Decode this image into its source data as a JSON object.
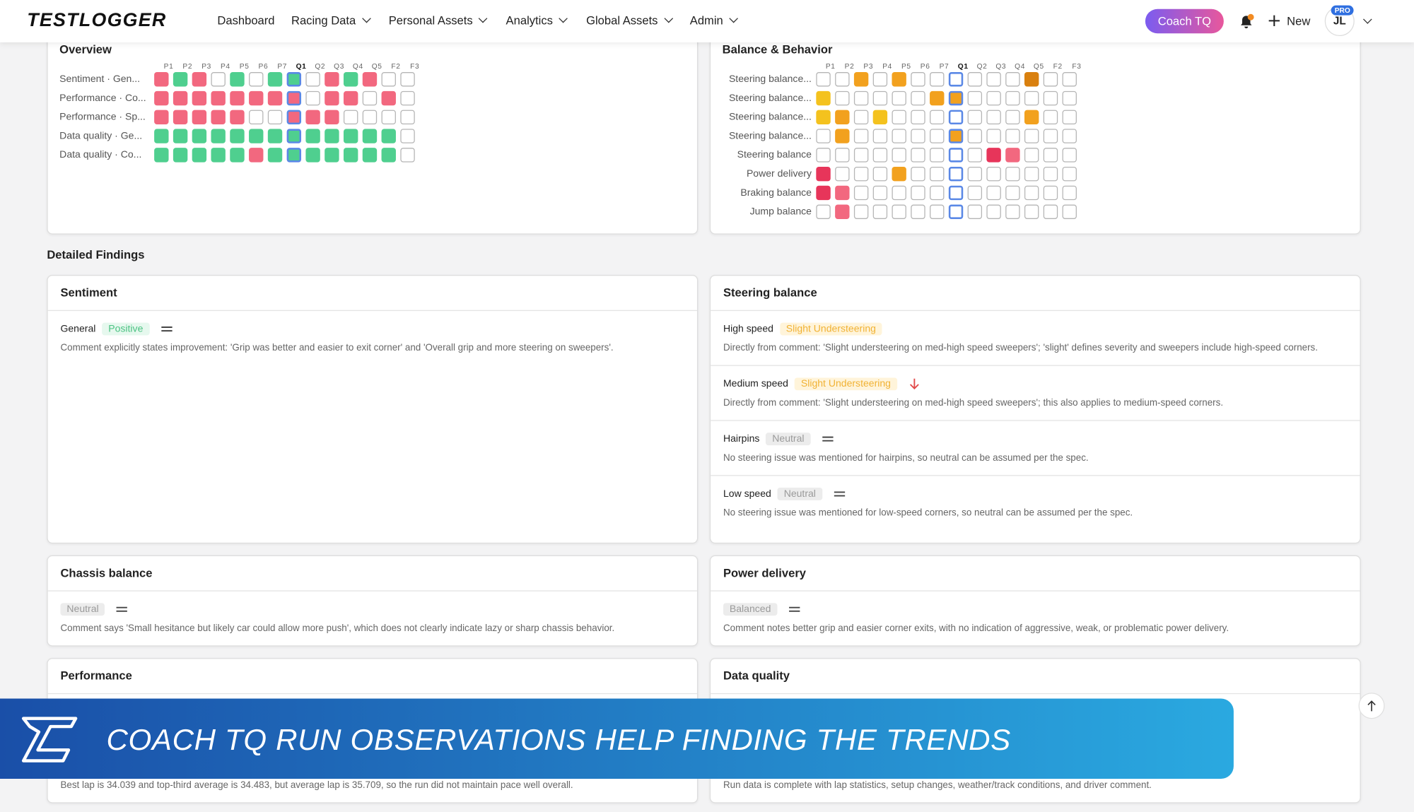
{
  "nav": {
    "logo": "TESTLOGGER",
    "items": [
      {
        "label": "Dashboard",
        "menu": false
      },
      {
        "label": "Racing Data",
        "menu": true
      },
      {
        "label": "Personal Assets",
        "menu": true
      },
      {
        "label": "Analytics",
        "menu": true
      },
      {
        "label": "Global Assets",
        "menu": true
      },
      {
        "label": "Admin",
        "menu": true
      }
    ],
    "coach": "Coach TQ",
    "new": "New",
    "avatar": "JL",
    "badge": "PRO"
  },
  "heatmaps": [
    {
      "title": "Overview",
      "columns": [
        "P1",
        "P2",
        "P3",
        "P4",
        "P5",
        "P6",
        "P7",
        "Q1",
        "Q2",
        "Q3",
        "Q4",
        "Q5",
        "F2",
        "F3"
      ],
      "current_column": "Q1",
      "label_align": "left",
      "rows": [
        {
          "label": "Sentiment · Gen...",
          "cells": [
            "pink",
            "green",
            "pink",
            "empty",
            "green",
            "empty",
            "green",
            "green",
            "empty",
            "pink",
            "green",
            "pink",
            "empty",
            "empty"
          ]
        },
        {
          "label": "Performance · Co...",
          "cells": [
            "pink",
            "pink",
            "pink",
            "pink",
            "pink",
            "pink",
            "pink",
            "pink",
            "empty",
            "pink",
            "pink",
            "empty",
            "pink",
            "empty"
          ]
        },
        {
          "label": "Performance · Sp...",
          "cells": [
            "pink",
            "pink",
            "pink",
            "pink",
            "pink",
            "empty",
            "empty",
            "pink",
            "pink",
            "pink",
            "empty",
            "empty",
            "empty",
            "empty"
          ]
        },
        {
          "label": "Data quality · Ge...",
          "cells": [
            "green",
            "green",
            "green",
            "green",
            "green",
            "green",
            "green",
            "green",
            "green",
            "green",
            "green",
            "green",
            "green",
            "empty"
          ]
        },
        {
          "label": "Data quality · Co...",
          "cells": [
            "green",
            "green",
            "green",
            "green",
            "green",
            "pink",
            "green",
            "green",
            "green",
            "green",
            "green",
            "green",
            "green",
            "empty"
          ]
        }
      ]
    },
    {
      "title": "Balance & Behavior",
      "columns": [
        "P1",
        "P2",
        "P3",
        "P4",
        "P5",
        "P6",
        "P7",
        "Q1",
        "Q2",
        "Q3",
        "Q4",
        "Q5",
        "F2",
        "F3"
      ],
      "current_column": "Q1",
      "label_align": "right",
      "rows": [
        {
          "label": "Steering balance...",
          "cells": [
            "empty",
            "empty",
            "orange",
            "empty",
            "orange",
            "empty",
            "empty",
            "empty",
            "empty",
            "empty",
            "empty",
            "darkorange",
            "empty",
            "empty"
          ]
        },
        {
          "label": "Steering balance...",
          "cells": [
            "yellow",
            "empty",
            "empty",
            "empty",
            "empty",
            "empty",
            "orange",
            "orange",
            "empty",
            "empty",
            "empty",
            "empty",
            "empty",
            "empty"
          ]
        },
        {
          "label": "Steering balance...",
          "cells": [
            "yellow",
            "orange",
            "empty",
            "yellow",
            "empty",
            "empty",
            "empty",
            "empty",
            "empty",
            "empty",
            "empty",
            "orange",
            "empty",
            "empty"
          ]
        },
        {
          "label": "Steering balance...",
          "cells": [
            "empty",
            "orange",
            "empty",
            "empty",
            "empty",
            "empty",
            "empty",
            "orange",
            "empty",
            "empty",
            "empty",
            "empty",
            "empty",
            "empty"
          ]
        },
        {
          "label": "Steering balance",
          "cells": [
            "empty",
            "empty",
            "empty",
            "empty",
            "empty",
            "empty",
            "empty",
            "empty",
            "empty",
            "red",
            "pink",
            "empty",
            "empty",
            "empty"
          ]
        },
        {
          "label": "Power delivery",
          "cells": [
            "red",
            "empty",
            "empty",
            "empty",
            "orange",
            "empty",
            "empty",
            "empty",
            "empty",
            "empty",
            "empty",
            "empty",
            "empty",
            "empty"
          ]
        },
        {
          "label": "Braking balance",
          "cells": [
            "red",
            "pink",
            "empty",
            "empty",
            "empty",
            "empty",
            "empty",
            "empty",
            "empty",
            "empty",
            "empty",
            "empty",
            "empty",
            "empty"
          ]
        },
        {
          "label": "Jump balance",
          "cells": [
            "empty",
            "pink",
            "empty",
            "empty",
            "empty",
            "empty",
            "empty",
            "empty",
            "empty",
            "empty",
            "empty",
            "empty",
            "empty",
            "empty"
          ]
        }
      ]
    }
  ],
  "findings": {
    "title": "Detailed Findings",
    "cards": [
      {
        "title": "Sentiment",
        "items": [
          {
            "label": "General",
            "tag": "Positive",
            "tag_style": "positive",
            "trend": "same",
            "comment": "Comment explicitly states improvement: 'Grip was better and easier to exit corner' and 'Overall grip and more steering on sweepers'."
          }
        ]
      },
      {
        "title": "Steering balance",
        "items": [
          {
            "label": "High speed",
            "tag": "Slight Understeering",
            "tag_style": "warning",
            "trend": "none",
            "comment": "Directly from comment: 'Slight understeering on med-high speed sweepers'; 'slight' defines severity and sweepers include high-speed corners."
          },
          {
            "label": "Medium speed",
            "tag": "Slight Understeering",
            "tag_style": "warning",
            "trend": "down",
            "comment": "Directly from comment: 'Slight understeering on med-high speed sweepers'; this also applies to medium-speed corners."
          },
          {
            "label": "Hairpins",
            "tag": "Neutral",
            "tag_style": "neutral",
            "trend": "same",
            "comment": "No steering issue was mentioned for hairpins, so neutral can be assumed per the spec."
          },
          {
            "label": "Low speed",
            "tag": "Neutral",
            "tag_style": "neutral",
            "trend": "same",
            "comment": "No steering issue was mentioned for low-speed corners, so neutral can be assumed per the spec."
          }
        ]
      },
      {
        "title": "Chassis balance",
        "items": [
          {
            "tag": "Neutral",
            "tag_style": "neutral",
            "trend": "same",
            "comment": "Comment says 'Small hesitance but likely car could allow more push', which does not clearly indicate lazy or sharp chassis behavior."
          }
        ]
      },
      {
        "title": "Power delivery",
        "items": [
          {
            "tag": "Balanced",
            "tag_style": "neutral",
            "trend": "same",
            "comment": "Comment notes better grip and easier corner exits, with no indication of aggressive, weak, or problematic power delivery."
          }
        ]
      },
      {
        "title": "Performance",
        "items": [
          {
            "comment": "Best lap is 34.039 and top-third average is 34.483, but average lap is 35.709, so the run did not maintain pace well overall."
          }
        ]
      },
      {
        "title": "Data quality",
        "items": [
          {
            "comment": "Run data is complete with lap statistics, setup changes, weather/track conditions, and driver comment."
          }
        ]
      }
    ]
  },
  "banner": {
    "text": "COACH TQ RUN OBSERVATIONS HELP FINDING THE TRENDS"
  }
}
